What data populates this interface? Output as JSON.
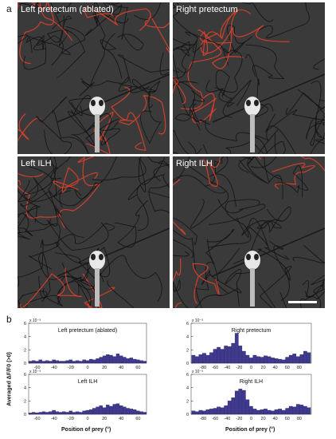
{
  "figure": {
    "panel_a_letter": "a",
    "panel_b_letter": "b",
    "tiles": [
      {
        "title": "Left pretectum (ablated)"
      },
      {
        "title": "Right pretectum"
      },
      {
        "title": "Left ILH"
      },
      {
        "title": "Right ILH"
      }
    ],
    "y_axis_label": "Averaged ΔF/F0 (>0)",
    "x_axis_label": "Position of prey (°)",
    "colors": {
      "bar": "#3f3a8f",
      "background": "#3a3a3a",
      "trace": "#111111",
      "active": "#e0402a"
    }
  },
  "chart_data": [
    {
      "type": "bar",
      "title": "Left pretectum (ablated)",
      "exponent_label": "x 10⁻³",
      "ylim": [
        0,
        6
      ],
      "yticks": [
        "0",
        "2",
        "4",
        "6"
      ],
      "xlim": [
        -70,
        70
      ],
      "xticks": [
        "-60",
        "-40",
        "-20",
        "0",
        "20",
        "40",
        "60"
      ],
      "x": [
        -68,
        -64,
        -60,
        -56,
        -52,
        -48,
        -44,
        -40,
        -36,
        -32,
        -28,
        -24,
        -20,
        -16,
        -12,
        -8,
        -4,
        0,
        4,
        8,
        12,
        16,
        20,
        24,
        28,
        32,
        36,
        40,
        44,
        48,
        52,
        56,
        60,
        64,
        68
      ],
      "values": [
        0.3,
        0.4,
        0.3,
        0.5,
        0.3,
        0.4,
        0.3,
        0.5,
        0.4,
        0.3,
        0.3,
        0.4,
        0.5,
        0.3,
        0.4,
        0.3,
        0.5,
        0.4,
        0.6,
        0.5,
        0.7,
        0.9,
        1.1,
        1.3,
        1.2,
        1.0,
        1.4,
        1.1,
        0.9,
        0.7,
        0.8,
        0.6,
        0.5,
        0.4,
        0.3
      ]
    },
    {
      "type": "bar",
      "title": "Right pretectum",
      "exponent_label": "x 10⁻³",
      "ylim": [
        0,
        6
      ],
      "yticks": [
        "0",
        "2",
        "4",
        "6"
      ],
      "xlim": [
        -100,
        100
      ],
      "xticks": [
        "-80",
        "-60",
        "-40",
        "-20",
        "0",
        "20",
        "40",
        "60",
        "80"
      ],
      "x": [
        -96,
        -90,
        -84,
        -78,
        -72,
        -66,
        -60,
        -54,
        -48,
        -42,
        -36,
        -30,
        -24,
        -18,
        -12,
        -6,
        0,
        6,
        12,
        18,
        24,
        30,
        36,
        42,
        48,
        54,
        60,
        66,
        72,
        78,
        84,
        90,
        96
      ],
      "values": [
        1.2,
        1.0,
        1.3,
        1.5,
        1.2,
        1.6,
        2.1,
        2.4,
        2.1,
        2.6,
        2.5,
        3.0,
        4.5,
        2.6,
        1.8,
        1.2,
        0.8,
        1.2,
        1.0,
        0.9,
        1.1,
        1.0,
        0.8,
        0.7,
        0.6,
        0.5,
        0.9,
        1.2,
        1.4,
        1.0,
        1.3,
        1.8,
        1.6
      ]
    },
    {
      "type": "bar",
      "title": "Left ILH",
      "exponent_label": "x 10⁻³",
      "ylim": [
        0,
        6
      ],
      "yticks": [
        "0",
        "2",
        "4",
        "6"
      ],
      "xlim": [
        -70,
        70
      ],
      "xticks": [
        "-60",
        "-40",
        "-20",
        "0",
        "20",
        "40",
        "60"
      ],
      "x": [
        -68,
        -64,
        -60,
        -56,
        -52,
        -48,
        -44,
        -40,
        -36,
        -32,
        -28,
        -24,
        -20,
        -16,
        -12,
        -8,
        -4,
        0,
        4,
        8,
        12,
        16,
        20,
        24,
        28,
        32,
        36,
        40,
        44,
        48,
        52,
        56,
        60,
        64,
        68
      ],
      "values": [
        0.2,
        0.3,
        0.2,
        0.3,
        0.4,
        0.3,
        0.4,
        0.6,
        0.4,
        0.3,
        0.4,
        0.3,
        0.5,
        0.3,
        0.4,
        0.3,
        0.5,
        0.6,
        0.7,
        0.9,
        1.1,
        1.3,
        1.0,
        1.4,
        1.2,
        1.5,
        1.6,
        1.3,
        1.1,
        0.9,
        0.8,
        0.7,
        0.5,
        0.4,
        0.3
      ]
    },
    {
      "type": "bar",
      "title": "Right ILH",
      "exponent_label": "x 10⁻³",
      "ylim": [
        0,
        6
      ],
      "yticks": [
        "0",
        "2",
        "4",
        "6"
      ],
      "xlim": [
        -100,
        100
      ],
      "xticks": [
        "-80",
        "-60",
        "-40",
        "-20",
        "0",
        "20",
        "40",
        "60",
        "80"
      ],
      "x": [
        -96,
        -90,
        -84,
        -78,
        -72,
        -66,
        -60,
        -54,
        -48,
        -42,
        -36,
        -30,
        -24,
        -18,
        -12,
        -6,
        0,
        6,
        12,
        18,
        24,
        30,
        36,
        42,
        48,
        54,
        60,
        66,
        72,
        78,
        84,
        90,
        96
      ],
      "values": [
        0.5,
        0.4,
        0.6,
        0.5,
        0.7,
        0.8,
        0.9,
        1.1,
        1.0,
        1.3,
        2.0,
        2.5,
        3.5,
        3.8,
        3.6,
        2.2,
        1.2,
        0.8,
        0.6,
        0.7,
        0.8,
        0.6,
        0.5,
        0.7,
        0.8,
        0.6,
        0.9,
        1.2,
        1.1,
        1.5,
        1.4,
        1.2,
        1.0
      ]
    }
  ]
}
